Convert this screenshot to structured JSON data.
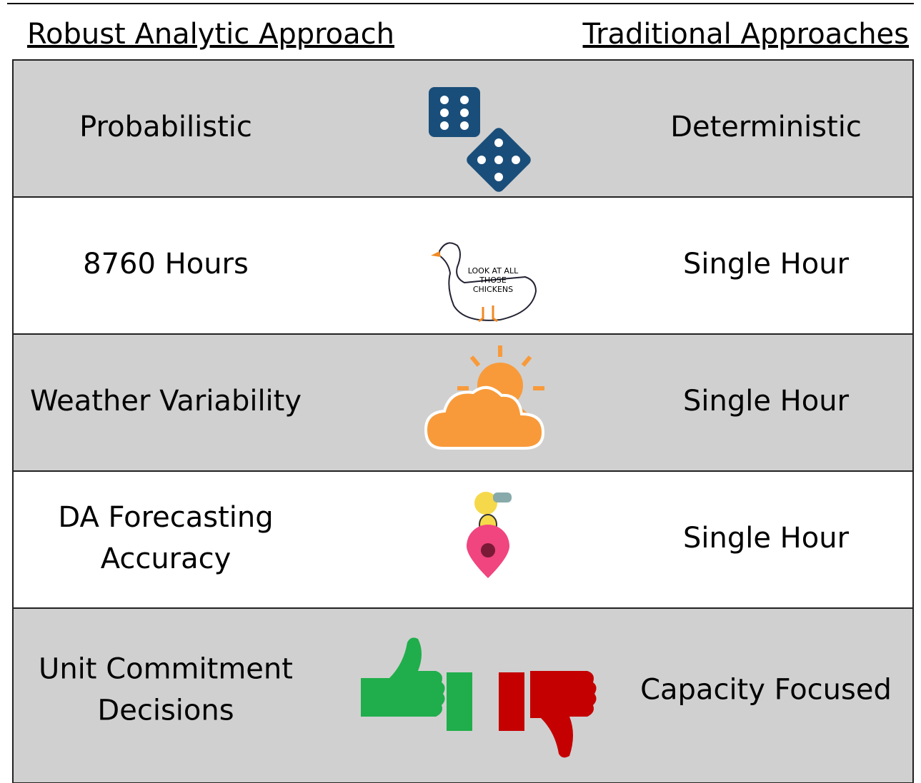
{
  "header": {
    "left": "Robust Analytic Approach",
    "right": "Traditional  Approaches"
  },
  "rows": [
    {
      "left": [
        "Probabilistic"
      ],
      "right": "Deterministic"
    },
    {
      "left": [
        "8760 Hours"
      ],
      "right": "Single Hour",
      "icon_text": [
        "LOOK AT ALL",
        "THOSE",
        "CHICKENS"
      ]
    },
    {
      "left": [
        "Weather Variability"
      ],
      "right": "Single Hour"
    },
    {
      "left": [
        "DA Forecasting",
        "Accuracy"
      ],
      "right": "Single Hour"
    },
    {
      "left": [
        "Unit Commitment",
        "Decisions"
      ],
      "right": "Capacity Focused"
    }
  ]
}
